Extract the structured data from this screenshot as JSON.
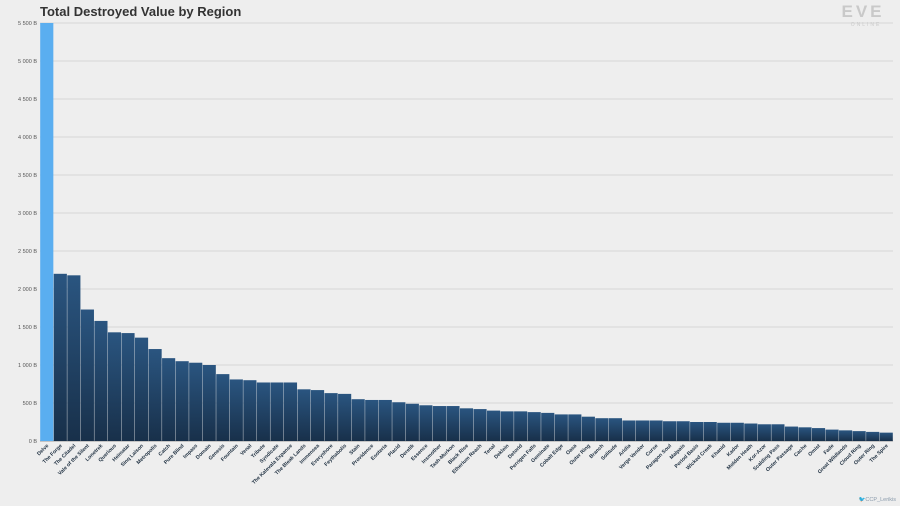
{
  "header": {
    "title": "Total Destroyed Value by Region",
    "logo_text": "EVE",
    "logo_subtext": "ONLINE"
  },
  "credit": {
    "handle": "CCP_Lerikis",
    "icon": "twitter-bird-icon"
  },
  "colors": {
    "highlight_bar": "#5aaef0",
    "bar_top": "#2a5580",
    "bar_bottom": "#18304a",
    "grid": "#cccccc",
    "background": "#eeeeee"
  },
  "chart_data": {
    "type": "bar",
    "title": "Total Destroyed Value by Region",
    "xlabel": "",
    "ylabel": "",
    "ylim": [
      0,
      5500
    ],
    "yticks": [
      0,
      500,
      1000,
      1500,
      2000,
      2500,
      3000,
      3500,
      4000,
      4500,
      5000,
      5500
    ],
    "ytick_labels": [
      "0 B",
      "500 B",
      "1 000 B",
      "1 500 B",
      "2 000 B",
      "2 500 B",
      "3 000 B",
      "3 500 B",
      "4 000 B",
      "4 500 B",
      "5 000 B",
      "5 500 B"
    ],
    "grid": true,
    "categories": [
      "Delve",
      "The Forge",
      "The Citadel",
      "Vale of the Silent",
      "Lonetrek",
      "Querious",
      "Heimatar",
      "Sinq Laison",
      "Metropolis",
      "Catch",
      "Pure Blind",
      "Impass",
      "Domain",
      "Genesis",
      "Fountain",
      "Venal",
      "Tribute",
      "Syndicate",
      "The Kalevala Expanse",
      "The Bleak Lands",
      "Immensea",
      "Everyshore",
      "Feythabolis",
      "Stain",
      "Providence",
      "Esoteria",
      "Placid",
      "Derelik",
      "Essence",
      "Insmother",
      "Tash-Murkon",
      "Black Rise",
      "Etherium Reach",
      "Tenal",
      "Deklein",
      "Detorid",
      "Perrigen Falls",
      "Geminate",
      "Cobalt Edge",
      "Oasa",
      "Outer Ring",
      "Branch",
      "Solitude",
      "Aridia",
      "Verge Vendor",
      "Curse",
      "Paragon Soul",
      "Malpais",
      "Period Basis",
      "Wicked Creek",
      "Khanid",
      "Kador",
      "Molden Heath",
      "Kor-Azor",
      "Scalding Pass",
      "Outer Passage",
      "Cache",
      "Omist",
      "Fade",
      "Great Wildlands",
      "Cloud Ring",
      "Outer Ring",
      "The Spire"
    ],
    "values": [
      5500,
      2200,
      2180,
      1730,
      1580,
      1430,
      1420,
      1360,
      1210,
      1090,
      1050,
      1030,
      1000,
      880,
      810,
      800,
      770,
      770,
      770,
      680,
      670,
      630,
      620,
      550,
      540,
      540,
      510,
      490,
      470,
      460,
      460,
      430,
      420,
      400,
      390,
      390,
      380,
      370,
      350,
      350,
      320,
      300,
      300,
      270,
      270,
      270,
      260,
      260,
      250,
      250,
      240,
      240,
      230,
      220,
      220,
      190,
      180,
      170,
      150,
      140,
      130,
      120,
      110
    ]
  }
}
